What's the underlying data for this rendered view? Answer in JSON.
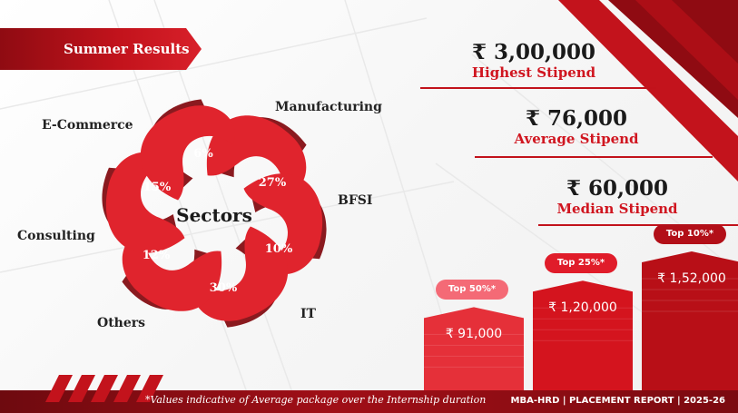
{
  "banner": {
    "title": "Summer Results"
  },
  "stats": [
    {
      "value": "₹ 3,00,000",
      "label": "Highest Stipend"
    },
    {
      "value": "₹ 76,000",
      "label": "Average Stipend"
    },
    {
      "value": "₹ 60,000",
      "label": "Median Stipend"
    }
  ],
  "footer": {
    "note": "*Values indicative of Average package over the Internship duration",
    "report": "MBA-HRD | PLACEMENT REPORT | 2025-26"
  },
  "colors": {
    "accent": "#d01620",
    "dark_red": "#8f0b12",
    "ribbon_shadow": "#8a1a1f"
  },
  "chart_data": [
    {
      "type": "pie",
      "title": "Sectors",
      "categories": [
        "Manufacturing",
        "BFSI",
        "IT",
        "Others",
        "Consulting",
        "E-Commerce"
      ],
      "values": [
        27,
        10,
        30,
        12,
        15,
        6
      ],
      "value_labels": [
        "27%",
        "10%",
        "30%",
        "12%",
        "15%",
        "6%"
      ]
    },
    {
      "type": "bar",
      "categories": [
        "Top 50%*",
        "Top 25%*",
        "Top 10%*"
      ],
      "values": [
        91000,
        120000,
        152000
      ],
      "value_labels": [
        "₹ 91,000",
        "₹ 1,20,000",
        "₹ 1,52,000"
      ]
    }
  ]
}
